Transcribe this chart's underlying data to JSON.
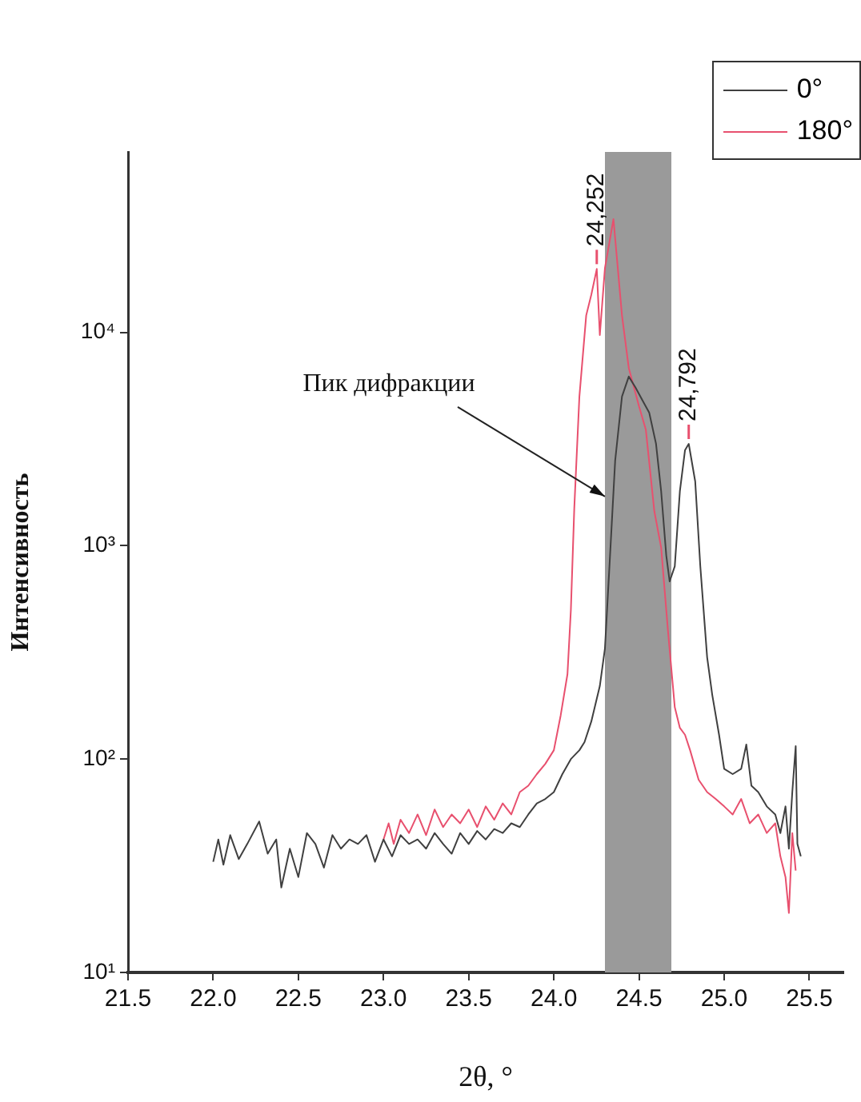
{
  "chart_data": {
    "type": "line",
    "xlabel": "2θ, °",
    "ylabel": "Интенсивность",
    "log": "y",
    "legend": "top right",
    "grid": false,
    "marker": "none",
    "line_style": "solid",
    "xlim": [
      21.5,
      25.7
    ],
    "xticks": [
      {
        "value": 21.5,
        "label": "21.5"
      },
      {
        "value": 22,
        "label": "22.0"
      },
      {
        "value": 22.5,
        "label": "22.5"
      },
      {
        "value": 23,
        "label": "23.0"
      },
      {
        "value": 23.5,
        "label": "23.5"
      },
      {
        "value": 24,
        "label": "24.0"
      },
      {
        "value": 24.5,
        "label": "24.5"
      },
      {
        "value": 25,
        "label": "25.0"
      },
      {
        "value": 25.5,
        "label": "25.5"
      }
    ],
    "ylim": [
      10,
      70000
    ],
    "yticks": [
      {
        "value": 10,
        "label": "10¹"
      },
      {
        "value": 100,
        "label": "10²"
      },
      {
        "value": 1000,
        "label": "10³"
      },
      {
        "value": 10000,
        "label": "10⁴"
      }
    ],
    "series": [
      {
        "name": "0°",
        "color": "#404040",
        "x": [
          22.0,
          22.03,
          22.06,
          22.1,
          22.15,
          22.2,
          22.27,
          22.32,
          22.37,
          22.4,
          22.45,
          22.5,
          22.55,
          22.6,
          22.65,
          22.7,
          22.75,
          22.8,
          22.85,
          22.9,
          22.95,
          23.0,
          23.05,
          23.1,
          23.15,
          23.2,
          23.25,
          23.3,
          23.35,
          23.4,
          23.45,
          23.5,
          23.55,
          23.6,
          23.65,
          23.7,
          23.75,
          23.8,
          23.85,
          23.9,
          23.95,
          24.0,
          24.05,
          24.1,
          24.15,
          24.18,
          24.22,
          24.27,
          24.3,
          24.33,
          24.36,
          24.4,
          24.44,
          24.48,
          24.52,
          24.56,
          24.6,
          24.63,
          24.66,
          24.68,
          24.71,
          24.74,
          24.77,
          24.792,
          24.83,
          24.86,
          24.9,
          24.93,
          24.97,
          25.0,
          25.05,
          25.1,
          25.13,
          25.16,
          25.2,
          25.25,
          25.3,
          25.33,
          25.36,
          25.38,
          25.4,
          25.42,
          25.43,
          25.45
        ],
        "values": [
          33,
          42,
          32,
          44,
          34,
          40,
          51,
          36,
          42,
          25,
          38,
          28,
          45,
          40,
          31,
          44,
          38,
          42,
          40,
          44,
          33,
          42,
          35,
          44,
          40,
          42,
          38,
          45,
          40,
          36,
          45,
          40,
          46,
          42,
          47,
          45,
          50,
          48,
          55,
          62,
          65,
          70,
          85,
          100,
          110,
          120,
          150,
          220,
          330,
          900,
          2500,
          5000,
          6200,
          5500,
          4800,
          4200,
          3000,
          1800,
          900,
          680,
          800,
          1800,
          2800,
          3000,
          2000,
          800,
          300,
          200,
          130,
          90,
          85,
          90,
          117,
          75,
          70,
          60,
          55,
          45,
          60,
          38,
          70,
          115,
          40,
          35
        ]
      },
      {
        "name": "180°",
        "color": "#e8506e",
        "x": [
          23.0,
          23.03,
          23.06,
          23.1,
          23.15,
          23.2,
          23.25,
          23.3,
          23.35,
          23.4,
          23.45,
          23.5,
          23.55,
          23.6,
          23.65,
          23.7,
          23.75,
          23.8,
          23.85,
          23.9,
          23.95,
          24.0,
          24.04,
          24.08,
          24.1,
          24.12,
          24.15,
          24.19,
          24.22,
          24.252,
          24.27,
          24.3,
          24.35,
          24.4,
          24.44,
          24.5,
          24.54,
          24.59,
          24.63,
          24.67,
          24.71,
          24.74,
          24.77,
          24.8,
          24.85,
          24.9,
          24.95,
          25.0,
          25.05,
          25.1,
          25.15,
          25.2,
          25.25,
          25.3,
          25.33,
          25.36,
          25.38,
          25.4,
          25.42
        ],
        "values": [
          42,
          50,
          40,
          52,
          45,
          55,
          44,
          58,
          48,
          55,
          50,
          58,
          48,
          60,
          52,
          62,
          55,
          70,
          75,
          85,
          95,
          110,
          160,
          250,
          500,
          1500,
          5000,
          12000,
          15000,
          19800,
          9700,
          20000,
          33900,
          12000,
          6800,
          4500,
          3500,
          1450,
          980,
          400,
          175,
          140,
          130,
          110,
          80,
          70,
          65,
          60,
          55,
          65,
          50,
          55,
          45,
          50,
          35,
          28,
          19,
          45,
          30
        ]
      }
    ],
    "bands": [
      {
        "axis": "x",
        "from": 24.3,
        "to": 24.69,
        "color": "#9a9a9a"
      }
    ],
    "annotations": [
      {
        "text": "Пик дифракции",
        "x": 24.3,
        "y": 1700
      },
      {
        "text": "24,252",
        "x": 24.252,
        "y": 19800
      },
      {
        "text": "24,792",
        "x": 24.792,
        "y": 3000
      }
    ]
  }
}
